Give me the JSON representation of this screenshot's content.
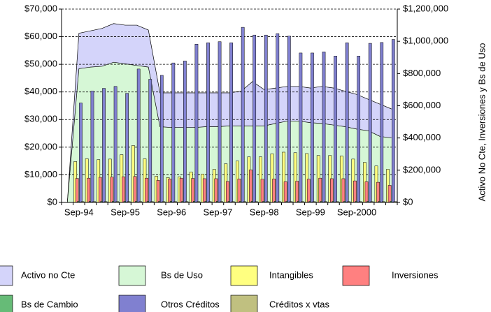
{
  "chart_data": {
    "type": "bar",
    "y2_label": "Activo No Cte, Inversiones y Bs de Uso",
    "categories": [
      null,
      "Sep-94",
      null,
      null,
      null,
      "Sep-95",
      null,
      null,
      null,
      "Sep-96",
      null,
      null,
      null,
      "Sep-97",
      null,
      null,
      null,
      "Sep-98",
      null,
      null,
      null,
      "Sep-99",
      null,
      null,
      null,
      "Sep-2000",
      null,
      null,
      null
    ],
    "ylim": [
      0,
      70000
    ],
    "yticks": [
      {
        "value": 0,
        "label": "$0"
      },
      {
        "value": 10000,
        "label": "$10,000"
      },
      {
        "value": 20000,
        "label": "$20,000"
      },
      {
        "value": 30000,
        "label": "$30,000"
      },
      {
        "value": 40000,
        "label": "$40,000"
      },
      {
        "value": 50000,
        "label": "$50,000"
      },
      {
        "value": 60000,
        "label": "$60,000"
      },
      {
        "value": 70000,
        "label": "$70,000"
      }
    ],
    "y2lim": [
      0,
      1200000
    ],
    "y2ticks": [
      {
        "value": 0,
        "label": "$0"
      },
      {
        "value": 200000,
        "label": "$200,000"
      },
      {
        "value": 400000,
        "label": "$400,000"
      },
      {
        "value": 600000,
        "label": "$600,000"
      },
      {
        "value": 800000,
        "label": "$800,000"
      },
      {
        "value": 1000000,
        "label": "$1,000,000"
      },
      {
        "value": 1200000,
        "label": "$1,200,000"
      }
    ],
    "grid": true,
    "series": [
      {
        "name": "Activo no Cte",
        "kind": "area",
        "axis": "y2",
        "color": "#d4d4fa",
        "values": [
          0,
          1050000,
          1065000,
          1080000,
          1110000,
          1100000,
          1100000,
          1070000,
          680000,
          680000,
          680000,
          680000,
          680000,
          680000,
          680000,
          690000,
          750000,
          700000,
          710000,
          720000,
          720000,
          710000,
          720000,
          710000,
          690000,
          670000,
          640000,
          610000,
          580000
        ]
      },
      {
        "name": "Bs de Uso",
        "kind": "area",
        "axis": "y2",
        "color": "#d6f7d6",
        "values": [
          0,
          830000,
          840000,
          845000,
          870000,
          860000,
          850000,
          840000,
          470000,
          465000,
          465000,
          465000,
          470000,
          470000,
          475000,
          475000,
          475000,
          475000,
          490000,
          505000,
          505000,
          495000,
          490000,
          480000,
          470000,
          455000,
          445000,
          410000,
          400000
        ]
      },
      {
        "name": "Intangibles",
        "kind": "bar",
        "color": "#ffff80",
        "values": [
          null,
          14800,
          15800,
          15500,
          15700,
          17300,
          20600,
          15800,
          9500,
          9000,
          9300,
          11000,
          10300,
          12000,
          14000,
          15000,
          16500,
          16500,
          17600,
          18200,
          18000,
          17700,
          17000,
          17000,
          16800,
          15700,
          14500,
          13200,
          12000
        ]
      },
      {
        "name": "Inversiones",
        "kind": "bar",
        "color": "#ff8080",
        "values": [
          null,
          8700,
          8800,
          9100,
          9200,
          9300,
          9400,
          8800,
          8000,
          8500,
          8800,
          8700,
          8600,
          8600,
          7600,
          8500,
          11800,
          8400,
          8500,
          7500,
          7700,
          8400,
          8800,
          8600,
          8600,
          7800,
          7500,
          7300,
          6200
        ]
      },
      {
        "name": "Bs de Cambio",
        "kind": "bar",
        "color": "#66bb77",
        "values": [
          null,
          400,
          400,
          400,
          400,
          400,
          400,
          400,
          400,
          400,
          400,
          400,
          400,
          400,
          400,
          400,
          400,
          400,
          400,
          400,
          400,
          400,
          400,
          400,
          400,
          400,
          400,
          400,
          400
        ]
      },
      {
        "name": "Otros Créditos",
        "kind": "bar",
        "color": "#8080d0",
        "values": [
          null,
          36000,
          40300,
          41300,
          42000,
          39500,
          48300,
          44600,
          46000,
          50500,
          51200,
          57300,
          57800,
          58200,
          57800,
          63400,
          60600,
          60600,
          61100,
          60200,
          54100,
          54100,
          54500,
          53000,
          57800,
          53000,
          57600,
          57900,
          59000
        ]
      },
      {
        "name": "Créditos x vtas",
        "kind": "bar",
        "color": "#c0c080",
        "values": [
          null,
          300,
          300,
          300,
          300,
          300,
          300,
          300,
          300,
          300,
          300,
          300,
          300,
          300,
          300,
          300,
          300,
          300,
          300,
          300,
          300,
          300,
          300,
          300,
          300,
          300,
          300,
          300,
          300
        ]
      }
    ]
  }
}
